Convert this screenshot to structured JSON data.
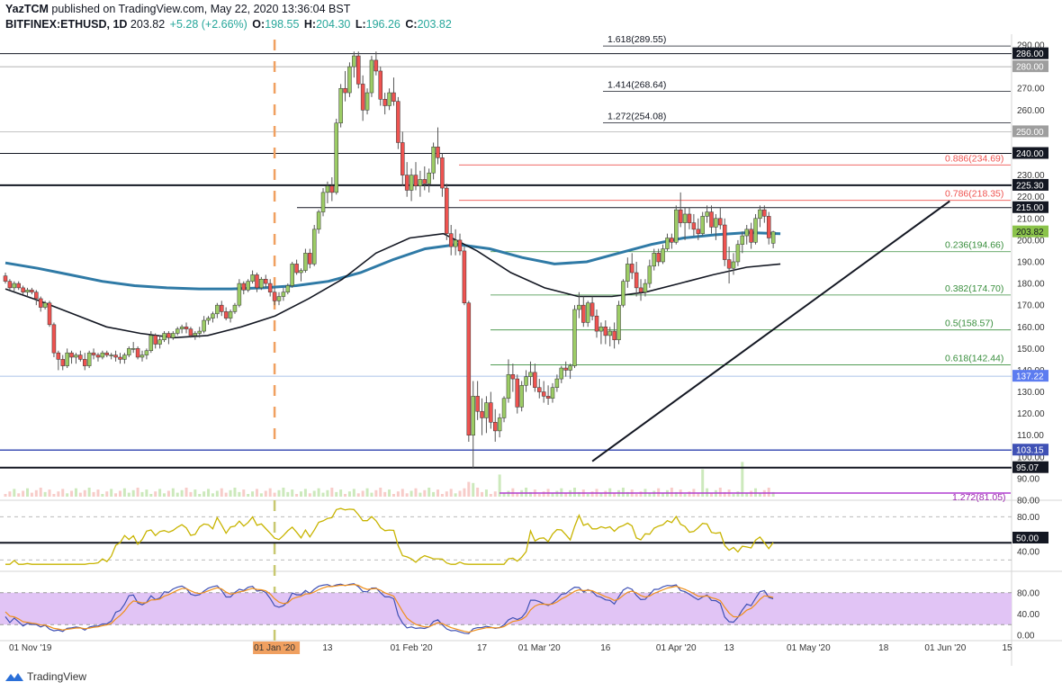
{
  "header": {
    "author": "YazTCM",
    "published": "published on TradingView.com, May 22, 2020 13:36:04 BST",
    "symbol": "BITFINEX:ETHUSD, 1D",
    "last": "203.82",
    "change": "+5.28 (+2.66%)",
    "open_label": "O:",
    "open": "198.55",
    "high_label": "H:",
    "high": "204.30",
    "low_label": "L:",
    "low": "196.26",
    "close_label": "C:",
    "close": "203.82"
  },
  "footer": {
    "brand": "TradingView"
  },
  "colors": {
    "up": "#26a69a",
    "down": "#ef5350",
    "candle_up": "#8bc34a",
    "candle_down": "#f44336",
    "fib_red": "#ef5350",
    "fib_green": "#388e3c",
    "ma_blue": "#2f7aa6",
    "rsi": "#c8b400",
    "stoch_fill": "#e1c4f5",
    "stoch_k": "#3f51b5",
    "stoch_d": "#ef8f1b",
    "vline": "#f0a060",
    "support_blue": "#3f51b5"
  },
  "chart_data": {
    "type": "candlestick",
    "price_axis": {
      "ylim": [
        80,
        295
      ],
      "ticks": [
        "290.00",
        "280.00",
        "270.00",
        "260.00",
        "250.00",
        "240.00",
        "230.00",
        "220.00",
        "210.00",
        "200.00",
        "190.00",
        "180.00",
        "170.00",
        "160.00",
        "150.00",
        "140.00",
        "130.00",
        "120.00",
        "110.00",
        "100.00",
        "90.00",
        "80.00"
      ]
    },
    "price_labels": [
      {
        "text": "286.00",
        "value": 286,
        "style": "dark"
      },
      {
        "text": "280.00",
        "value": 280,
        "style": "gray"
      },
      {
        "text": "250.00",
        "value": 250,
        "style": "gray"
      },
      {
        "text": "240.00",
        "value": 240,
        "style": "dark"
      },
      {
        "text": "225.30",
        "value": 225.3,
        "style": "dark"
      },
      {
        "text": "215.00",
        "value": 215,
        "style": "dark"
      },
      {
        "text": "203.82",
        "value": 203.82,
        "style": "green"
      },
      {
        "text": "137.22",
        "value": 137.22,
        "style": "blue"
      },
      {
        "text": "103.15",
        "value": 103.15,
        "style": "navy"
      },
      {
        "text": "95.07",
        "value": 95.07,
        "style": "dark"
      },
      {
        "text": "50.00",
        "value": 50,
        "style": "dark",
        "panel": "rsi"
      }
    ],
    "fib_levels": [
      {
        "label": "1.618",
        "value": 289.55,
        "text": "1.618(289.55)",
        "color": "#131722"
      },
      {
        "label": "1.414",
        "value": 268.64,
        "text": "1.414(268.64)",
        "color": "#131722"
      },
      {
        "label": "1.272",
        "value": 254.08,
        "text": "1.272(254.08)",
        "color": "#131722"
      },
      {
        "label": "0.886",
        "value": 234.69,
        "text": "0.886(234.69)",
        "color": "#ef5350"
      },
      {
        "label": "0.786",
        "value": 218.35,
        "text": "0.786(218.35)",
        "color": "#ef5350"
      },
      {
        "label": "0.236",
        "value": 194.66,
        "text": "0.236(194.66)",
        "color": "#388e3c"
      },
      {
        "label": "0.382",
        "value": 174.7,
        "text": "0.382(174.70)",
        "color": "#388e3c"
      },
      {
        "label": "0.5",
        "value": 158.57,
        "text": "0.5(158.57)",
        "color": "#388e3c"
      },
      {
        "label": "0.618",
        "value": 142.44,
        "text": "0.618(142.44)",
        "color": "#388e3c"
      },
      {
        "label": "1.272",
        "value": 81.05,
        "text": "1.272(81.05)",
        "color": "#9c27b0"
      }
    ],
    "x_axis": {
      "start": "2019-11-01",
      "end": "2020-06-15",
      "ticks": [
        {
          "date": "2019-11-01",
          "text": "01 Nov '19"
        },
        {
          "date": "2020-01-01",
          "text": "01 Jan '20",
          "highlight": true
        },
        {
          "date": "2020-01-13",
          "text": "13"
        },
        {
          "date": "2020-02-01",
          "text": "01 Feb '20"
        },
        {
          "date": "2020-02-17",
          "text": "17"
        },
        {
          "date": "2020-03-01",
          "text": "01 Mar '20"
        },
        {
          "date": "2020-03-16",
          "text": "16"
        },
        {
          "date": "2020-04-01",
          "text": "01 Apr '20"
        },
        {
          "date": "2020-04-13",
          "text": "13"
        },
        {
          "date": "2020-05-01",
          "text": "01 May '20"
        },
        {
          "date": "2020-05-18",
          "text": "18"
        },
        {
          "date": "2020-06-01",
          "text": "01 Jun '20"
        },
        {
          "date": "2020-06-15",
          "text": "15"
        }
      ]
    },
    "candles_ohlc": [
      [
        183.5,
        185,
        180,
        181
      ],
      [
        181,
        182,
        177,
        178
      ],
      [
        178,
        181,
        176.5,
        180
      ],
      [
        180,
        181,
        177,
        178
      ],
      [
        178,
        179,
        175,
        176
      ],
      [
        176,
        178,
        174,
        177
      ],
      [
        177,
        178,
        175,
        176
      ],
      [
        176,
        177,
        170,
        173
      ],
      [
        173,
        174,
        167,
        169
      ],
      [
        169,
        172,
        168,
        171
      ],
      [
        171,
        172,
        160,
        161
      ],
      [
        161,
        162,
        146,
        148
      ],
      [
        148,
        149,
        140,
        145
      ],
      [
        145,
        147,
        140,
        142
      ],
      [
        142,
        150,
        141,
        148
      ],
      [
        148,
        149,
        143,
        146
      ],
      [
        146,
        148,
        143,
        147
      ],
      [
        147,
        149,
        144,
        145
      ],
      [
        145,
        148,
        140,
        142
      ],
      [
        142,
        149,
        141,
        148
      ],
      [
        148,
        150,
        145,
        147
      ],
      [
        147,
        148,
        144,
        146
      ],
      [
        146,
        149,
        145,
        148
      ],
      [
        148,
        149,
        146,
        147
      ],
      [
        147,
        148,
        145,
        147
      ],
      [
        147,
        149,
        144,
        146
      ],
      [
        146,
        148,
        143,
        145
      ],
      [
        145,
        148,
        143,
        147
      ],
      [
        147,
        151,
        146,
        150
      ],
      [
        150,
        153,
        148,
        150
      ],
      [
        150,
        151,
        145,
        146
      ],
      [
        146,
        149,
        144,
        147
      ],
      [
        147,
        150,
        145,
        149
      ],
      [
        149,
        158,
        148,
        156
      ],
      [
        156,
        157,
        150,
        152
      ],
      [
        152,
        156,
        150,
        154
      ],
      [
        154,
        158,
        153,
        157
      ],
      [
        157,
        158,
        152,
        155
      ],
      [
        155,
        158,
        154,
        157
      ],
      [
        157,
        160,
        156,
        159
      ],
      [
        159,
        161,
        157,
        160
      ],
      [
        160,
        162,
        157,
        159
      ],
      [
        159,
        160,
        155,
        156
      ],
      [
        156,
        158,
        154,
        157
      ],
      [
        157,
        160,
        155,
        158
      ],
      [
        158,
        165,
        157,
        163
      ],
      [
        163,
        165,
        161,
        164
      ],
      [
        164,
        167,
        162,
        166
      ],
      [
        166,
        171,
        164,
        170
      ],
      [
        170,
        172,
        165,
        167
      ],
      [
        167,
        169,
        163,
        164
      ],
      [
        164,
        168,
        162,
        167
      ],
      [
        167,
        171,
        166,
        170
      ],
      [
        170,
        182,
        169,
        180
      ],
      [
        180,
        181,
        175,
        177
      ],
      [
        177,
        182,
        176,
        181
      ],
      [
        181,
        186,
        180,
        184
      ],
      [
        184,
        185,
        176,
        178
      ],
      [
        178,
        183,
        177,
        182
      ],
      [
        182,
        184,
        178,
        180
      ],
      [
        180,
        182,
        174,
        176
      ],
      [
        176,
        178,
        170,
        172
      ],
      [
        172,
        176,
        170,
        174
      ],
      [
        174,
        178,
        172,
        176
      ],
      [
        176,
        180,
        175,
        179
      ],
      [
        179,
        190,
        178,
        189
      ],
      [
        189,
        191,
        184,
        185
      ],
      [
        185,
        187,
        181,
        186
      ],
      [
        186,
        196,
        185,
        194
      ],
      [
        194,
        196,
        187,
        189
      ],
      [
        189,
        207,
        188,
        205
      ],
      [
        205,
        214,
        203,
        213
      ],
      [
        213,
        224,
        211,
        222
      ],
      [
        222,
        227,
        217,
        225
      ],
      [
        225,
        229,
        218,
        222
      ],
      [
        222,
        256,
        221,
        254
      ],
      [
        254,
        272,
        252,
        270
      ],
      [
        270,
        278,
        264,
        268
      ],
      [
        268,
        282,
        266,
        280
      ],
      [
        280,
        287,
        275,
        285
      ],
      [
        285,
        287,
        270,
        272
      ],
      [
        272,
        276,
        255,
        260
      ],
      [
        260,
        270,
        258,
        268
      ],
      [
        268,
        285,
        266,
        283
      ],
      [
        283,
        287,
        276,
        278
      ],
      [
        278,
        280,
        262,
        265
      ],
      [
        265,
        268,
        258,
        262
      ],
      [
        262,
        270,
        260,
        268
      ],
      [
        268,
        275,
        262,
        264
      ],
      [
        264,
        266,
        242,
        245
      ],
      [
        245,
        250,
        225,
        230
      ],
      [
        230,
        236,
        220,
        223
      ],
      [
        223,
        233,
        218,
        230
      ],
      [
        230,
        236,
        223,
        225
      ],
      [
        225,
        232,
        220,
        228
      ],
      [
        228,
        234,
        223,
        226
      ],
      [
        226,
        233,
        222,
        231
      ],
      [
        231,
        245,
        228,
        243
      ],
      [
        243,
        252,
        235,
        238
      ],
      [
        238,
        240,
        220,
        224
      ],
      [
        224,
        226,
        200,
        203
      ],
      [
        203,
        207,
        193,
        197
      ],
      [
        197,
        205,
        193,
        200
      ],
      [
        200,
        203,
        193,
        195
      ],
      [
        195,
        197,
        170,
        171
      ],
      [
        171,
        172,
        107,
        110
      ],
      [
        110,
        135,
        95,
        128
      ],
      [
        128,
        135,
        117,
        121
      ],
      [
        121,
        127,
        110,
        118
      ],
      [
        118,
        128,
        111,
        125
      ],
      [
        125,
        130,
        113,
        116
      ],
      [
        116,
        122,
        107,
        112
      ],
      [
        112,
        120,
        109,
        118
      ],
      [
        118,
        128,
        116,
        127
      ],
      [
        127,
        145,
        125,
        138
      ],
      [
        138,
        143,
        130,
        136
      ],
      [
        136,
        138,
        120,
        123
      ],
      [
        123,
        135,
        121,
        133
      ],
      [
        133,
        140,
        130,
        137
      ],
      [
        137,
        144,
        133,
        139
      ],
      [
        139,
        143,
        130,
        132
      ],
      [
        132,
        136,
        127,
        130
      ],
      [
        130,
        135,
        125,
        128
      ],
      [
        128,
        133,
        124,
        127
      ],
      [
        127,
        134,
        125,
        132
      ],
      [
        132,
        138,
        130,
        136
      ],
      [
        136,
        142,
        134,
        141
      ],
      [
        141,
        144,
        137,
        140
      ],
      [
        140,
        143,
        136,
        142
      ],
      [
        142,
        170,
        141,
        168
      ],
      [
        168,
        176,
        164,
        170
      ],
      [
        170,
        174,
        160,
        162
      ],
      [
        162,
        172,
        160,
        171
      ],
      [
        171,
        174,
        163,
        165
      ],
      [
        165,
        168,
        155,
        158
      ],
      [
        158,
        162,
        152,
        160
      ],
      [
        160,
        163,
        152,
        156
      ],
      [
        156,
        160,
        151,
        158
      ],
      [
        158,
        162,
        150,
        154
      ],
      [
        154,
        172,
        152,
        170
      ],
      [
        170,
        182,
        169,
        181
      ],
      [
        181,
        192,
        178,
        189
      ],
      [
        189,
        194,
        182,
        185
      ],
      [
        185,
        190,
        174,
        178
      ],
      [
        178,
        182,
        172,
        176
      ],
      [
        176,
        182,
        174,
        180
      ],
      [
        180,
        191,
        178,
        188
      ],
      [
        188,
        196,
        186,
        194
      ],
      [
        194,
        196,
        188,
        190
      ],
      [
        190,
        198,
        189,
        196
      ],
      [
        196,
        203,
        195,
        201
      ],
      [
        201,
        203,
        196,
        199
      ],
      [
        199,
        216,
        198,
        214
      ],
      [
        214,
        222,
        206,
        208
      ],
      [
        208,
        215,
        200,
        212
      ],
      [
        212,
        215,
        205,
        208
      ],
      [
        208,
        212,
        202,
        205
      ],
      [
        205,
        210,
        200,
        203
      ],
      [
        203,
        213,
        202,
        211
      ],
      [
        211,
        216,
        208,
        213
      ],
      [
        213,
        216,
        203,
        206
      ],
      [
        206,
        212,
        200,
        210
      ],
      [
        210,
        215,
        205,
        207
      ],
      [
        207,
        210,
        188,
        191
      ],
      [
        191,
        197,
        180,
        187
      ],
      [
        187,
        194,
        184,
        190
      ],
      [
        190,
        200,
        188,
        198
      ],
      [
        198,
        204,
        194,
        202
      ],
      [
        202,
        207,
        198,
        205
      ],
      [
        205,
        208,
        196,
        199
      ],
      [
        199,
        212,
        198,
        210
      ],
      [
        210,
        216,
        206,
        214
      ],
      [
        214,
        216,
        208,
        211
      ],
      [
        211,
        213,
        198,
        201
      ],
      [
        198.55,
        204.3,
        196.26,
        203.82
      ]
    ],
    "ma_long": {
      "name": "",
      "values": [
        189.5,
        187,
        184,
        181,
        179,
        178,
        177.5,
        177.5,
        178,
        179,
        181,
        185,
        191,
        196,
        198,
        196,
        192,
        189,
        190,
        194,
        198,
        201,
        202.5,
        203.5,
        203
      ]
    },
    "ma_short": {
      "name": "",
      "values": [
        177.5,
        172,
        166,
        160,
        157,
        155,
        156,
        160,
        165,
        173,
        182,
        194,
        201,
        203,
        195,
        185,
        178,
        174,
        174,
        176,
        180,
        184,
        187.5,
        189
      ]
    },
    "trendline": [
      [
        98,
        "2020-03-13"
      ],
      [
        218,
        "2020-06-02"
      ]
    ],
    "rsi_panel": {
      "ticks": [
        "80.00",
        "50.00",
        "40.00"
      ],
      "upper": 80,
      "mid": 50,
      "lower": 30
    },
    "stoch_panel": {
      "ticks": [
        "80.00",
        "40.00",
        "0.00"
      ],
      "upper": 80,
      "lower": 20
    }
  }
}
